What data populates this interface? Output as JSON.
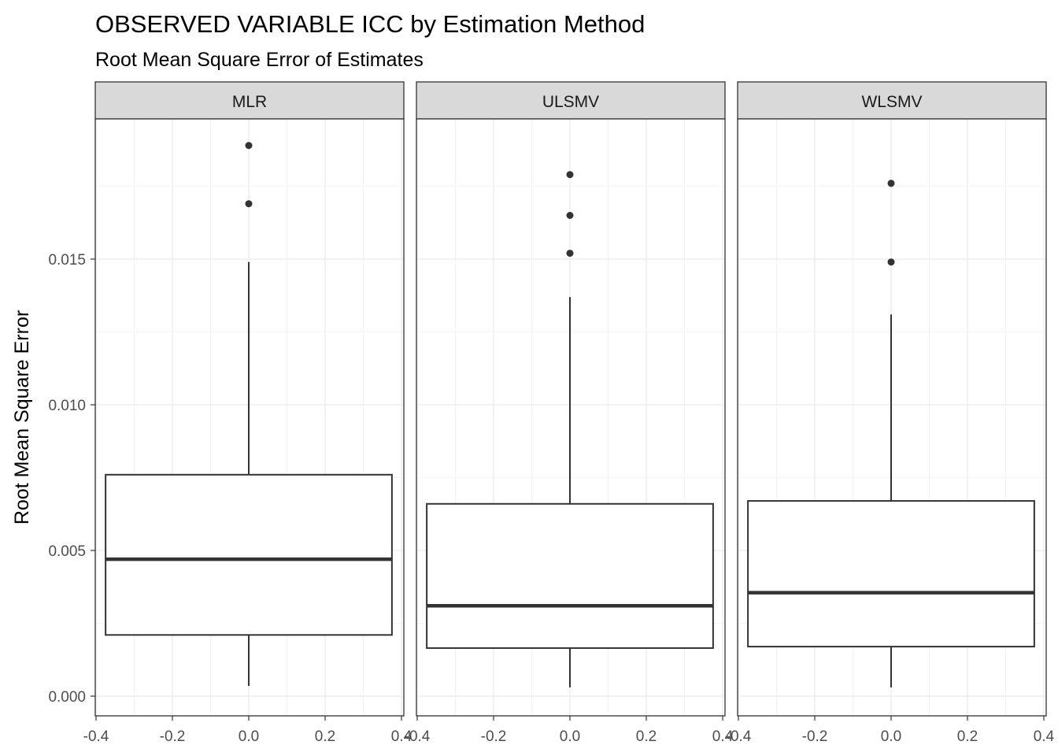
{
  "chart_data": {
    "type": "boxplot",
    "title": "OBSERVED VARIABLE ICC by Estimation Method",
    "subtitle": "Root Mean Square Error of Estimates",
    "ylabel": "Root Mean Square Error",
    "xlabel": "",
    "xlim": [
      -0.4,
      0.4
    ],
    "ylim": [
      0.0,
      0.02
    ],
    "x_ticks": [
      -0.4,
      -0.2,
      0.0,
      0.2,
      0.4
    ],
    "x_tick_labels": [
      "-0.4",
      "-0.2",
      "0.0",
      "0.2",
      "0.4"
    ],
    "y_ticks": [
      0.0,
      0.005,
      0.01,
      0.015
    ],
    "y_tick_labels": [
      "0.000",
      "0.005",
      "0.010",
      "0.015"
    ],
    "grid": true,
    "box_half_width": 0.375,
    "facets": [
      {
        "label": "MLR",
        "x": 0.0,
        "whisker_low": 0.00035,
        "q1": 0.0021,
        "median": 0.0047,
        "q3": 0.0076,
        "whisker_high": 0.0149,
        "outliers": [
          0.0169,
          0.0189
        ]
      },
      {
        "label": "ULSMV",
        "x": 0.0,
        "whisker_low": 0.0003,
        "q1": 0.00165,
        "median": 0.0031,
        "q3": 0.0066,
        "whisker_high": 0.0137,
        "outliers": [
          0.0152,
          0.0165,
          0.0179
        ]
      },
      {
        "label": "WLSMV",
        "x": 0.0,
        "whisker_low": 0.0003,
        "q1": 0.0017,
        "median": 0.00355,
        "q3": 0.0067,
        "whisker_high": 0.0131,
        "outliers": [
          0.0149,
          0.0176
        ]
      }
    ],
    "colors": {
      "panel_border": "#333333",
      "strip_fill": "#d9d9d9",
      "grid_major": "#ebebeb",
      "grid_minor": "#f5f5f5",
      "box_line": "#333333",
      "outlier": "#333333"
    }
  }
}
